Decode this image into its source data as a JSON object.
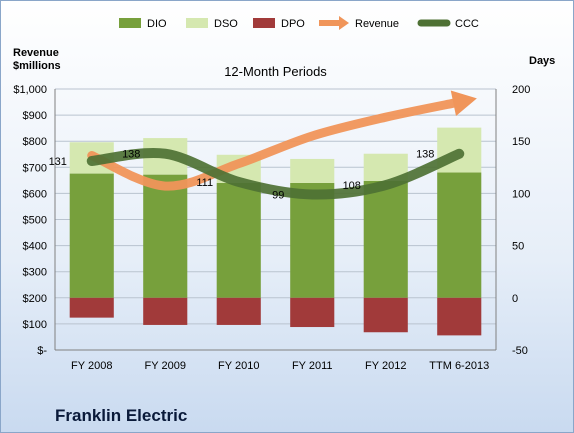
{
  "page": {
    "company": "Franklin Electric",
    "left_axis_title_line1": "Revenue",
    "left_axis_title_line2": "$millions",
    "right_axis_title": "Days"
  },
  "chart_data": {
    "type": "bar",
    "title": "12-Month Periods",
    "categories": [
      "FY 2008",
      "FY 2009",
      "FY 2010",
      "FY 2011",
      "FY 2012",
      "TTM 6-2013"
    ],
    "legend": [
      "DIO",
      "DSO",
      "DPO",
      "Revenue",
      "CCC"
    ],
    "legend_position": "top",
    "grid": true,
    "y_left": {
      "label": "Revenue $millions",
      "range": [
        0,
        1000
      ],
      "ticks": [
        "$-",
        "$100",
        "$200",
        "$300",
        "$400",
        "$500",
        "$600",
        "$700",
        "$800",
        "$900",
        "$1,000"
      ]
    },
    "y_right": {
      "label": "Days",
      "range": [
        -50,
        200
      ],
      "ticks": [
        "-50",
        "0",
        "50",
        "100",
        "150",
        "200"
      ]
    },
    "series": [
      {
        "name": "DIO",
        "type": "stacked-bar",
        "axis": "right",
        "color": "#77a03c",
        "values": [
          119,
          118,
          110,
          110,
          112,
          120
        ]
      },
      {
        "name": "DSO",
        "type": "stacked-bar",
        "axis": "right",
        "color": "#d5e8b0",
        "values": [
          30,
          35,
          27,
          23,
          26,
          43
        ]
      },
      {
        "name": "DPO",
        "type": "stacked-bar",
        "axis": "right",
        "color": "#a13a3a",
        "values": [
          -19,
          -26,
          -26,
          -28,
          -33,
          -36
        ]
      },
      {
        "name": "Revenue",
        "type": "line",
        "axis": "left",
        "color": "#f0955a",
        "values": [
          745,
          628,
          714,
          820,
          892,
          950
        ]
      },
      {
        "name": "CCC",
        "type": "line",
        "axis": "right",
        "color": "#4e7134",
        "values": [
          131,
          138,
          111,
          99,
          108,
          138
        ]
      }
    ],
    "data_labels": [
      "131",
      "138",
      "111",
      "99",
      "108",
      "138"
    ]
  }
}
